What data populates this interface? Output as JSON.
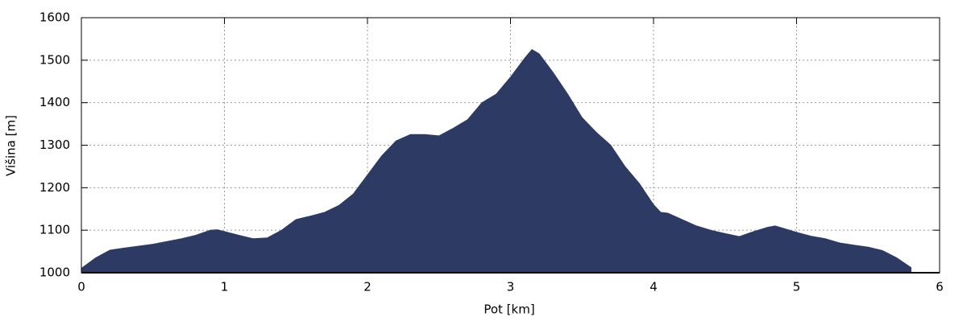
{
  "chart_data": {
    "type": "area",
    "xlabel": "Pot [km]",
    "ylabel": "Višina [m]",
    "x": [
      0,
      0.1,
      0.2,
      0.3,
      0.5,
      0.7,
      0.8,
      0.9,
      0.95,
      1.0,
      1.1,
      1.2,
      1.3,
      1.4,
      1.5,
      1.6,
      1.7,
      1.8,
      1.9,
      2.0,
      2.1,
      2.2,
      2.3,
      2.4,
      2.5,
      2.6,
      2.7,
      2.8,
      2.9,
      3.0,
      3.1,
      3.15,
      3.2,
      3.3,
      3.4,
      3.5,
      3.6,
      3.7,
      3.8,
      3.9,
      4.0,
      4.05,
      4.1,
      4.2,
      4.3,
      4.4,
      4.5,
      4.6,
      4.7,
      4.8,
      4.85,
      4.9,
      5.0,
      5.1,
      5.2,
      5.3,
      5.4,
      5.5,
      5.6,
      5.7,
      5.8
    ],
    "values": [
      1010,
      1035,
      1053,
      1058,
      1067,
      1080,
      1088,
      1100,
      1101,
      1097,
      1088,
      1080,
      1082,
      1100,
      1125,
      1133,
      1142,
      1158,
      1185,
      1230,
      1275,
      1310,
      1325,
      1325,
      1322,
      1340,
      1360,
      1400,
      1420,
      1460,
      1505,
      1525,
      1515,
      1470,
      1420,
      1365,
      1330,
      1300,
      1250,
      1210,
      1160,
      1142,
      1140,
      1125,
      1110,
      1100,
      1092,
      1085,
      1097,
      1107,
      1110,
      1105,
      1095,
      1086,
      1080,
      1070,
      1065,
      1060,
      1052,
      1035,
      1012
    ],
    "color": "#2d3a63",
    "xlim": [
      0,
      6
    ],
    "xticks": [
      0,
      1,
      2,
      3,
      4,
      5,
      6
    ],
    "ylim": [
      1000,
      1600
    ],
    "yticks": [
      1000,
      1100,
      1200,
      1300,
      1400,
      1500,
      1600
    ],
    "grid": true
  }
}
